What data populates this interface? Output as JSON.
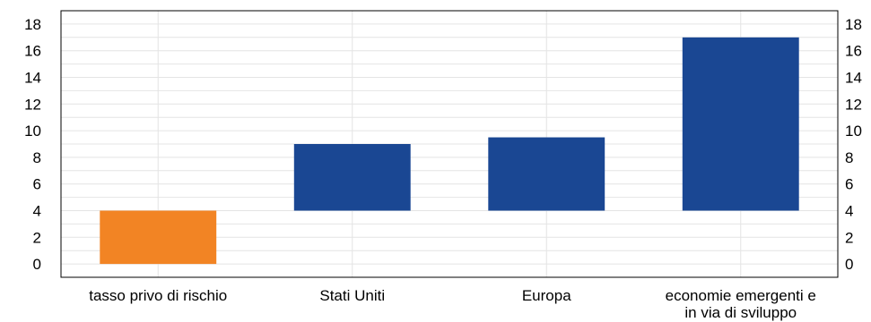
{
  "chart_data": {
    "type": "bar",
    "subtype": "waterfall",
    "categories": [
      "tasso privo di rischio",
      "Stati Uniti",
      "Europa",
      "economie emergenti e in via di sviluppo"
    ],
    "category_label_lines": [
      [
        "tasso privo di rischio"
      ],
      [
        "Stati Uniti"
      ],
      [
        "Europa"
      ],
      [
        "economie emergenti e",
        "in via di sviluppo"
      ]
    ],
    "bars": [
      {
        "base": 0,
        "top": 4,
        "color": "#f28424"
      },
      {
        "base": 4,
        "top": 9,
        "color": "#1a4793"
      },
      {
        "base": 4,
        "top": 9.5,
        "color": "#1a4793"
      },
      {
        "base": 4,
        "top": 17,
        "color": "#1a4793"
      }
    ],
    "ylim": [
      -1,
      19
    ],
    "yticks": [
      0,
      2,
      4,
      6,
      8,
      10,
      12,
      14,
      16,
      18
    ],
    "ytick_labels": [
      "0",
      "2",
      "4",
      "6",
      "8",
      "10",
      "12",
      "14",
      "16",
      "18"
    ],
    "grid": true,
    "dual_y_axis": true,
    "title": "",
    "xlabel": "",
    "ylabel": ""
  }
}
